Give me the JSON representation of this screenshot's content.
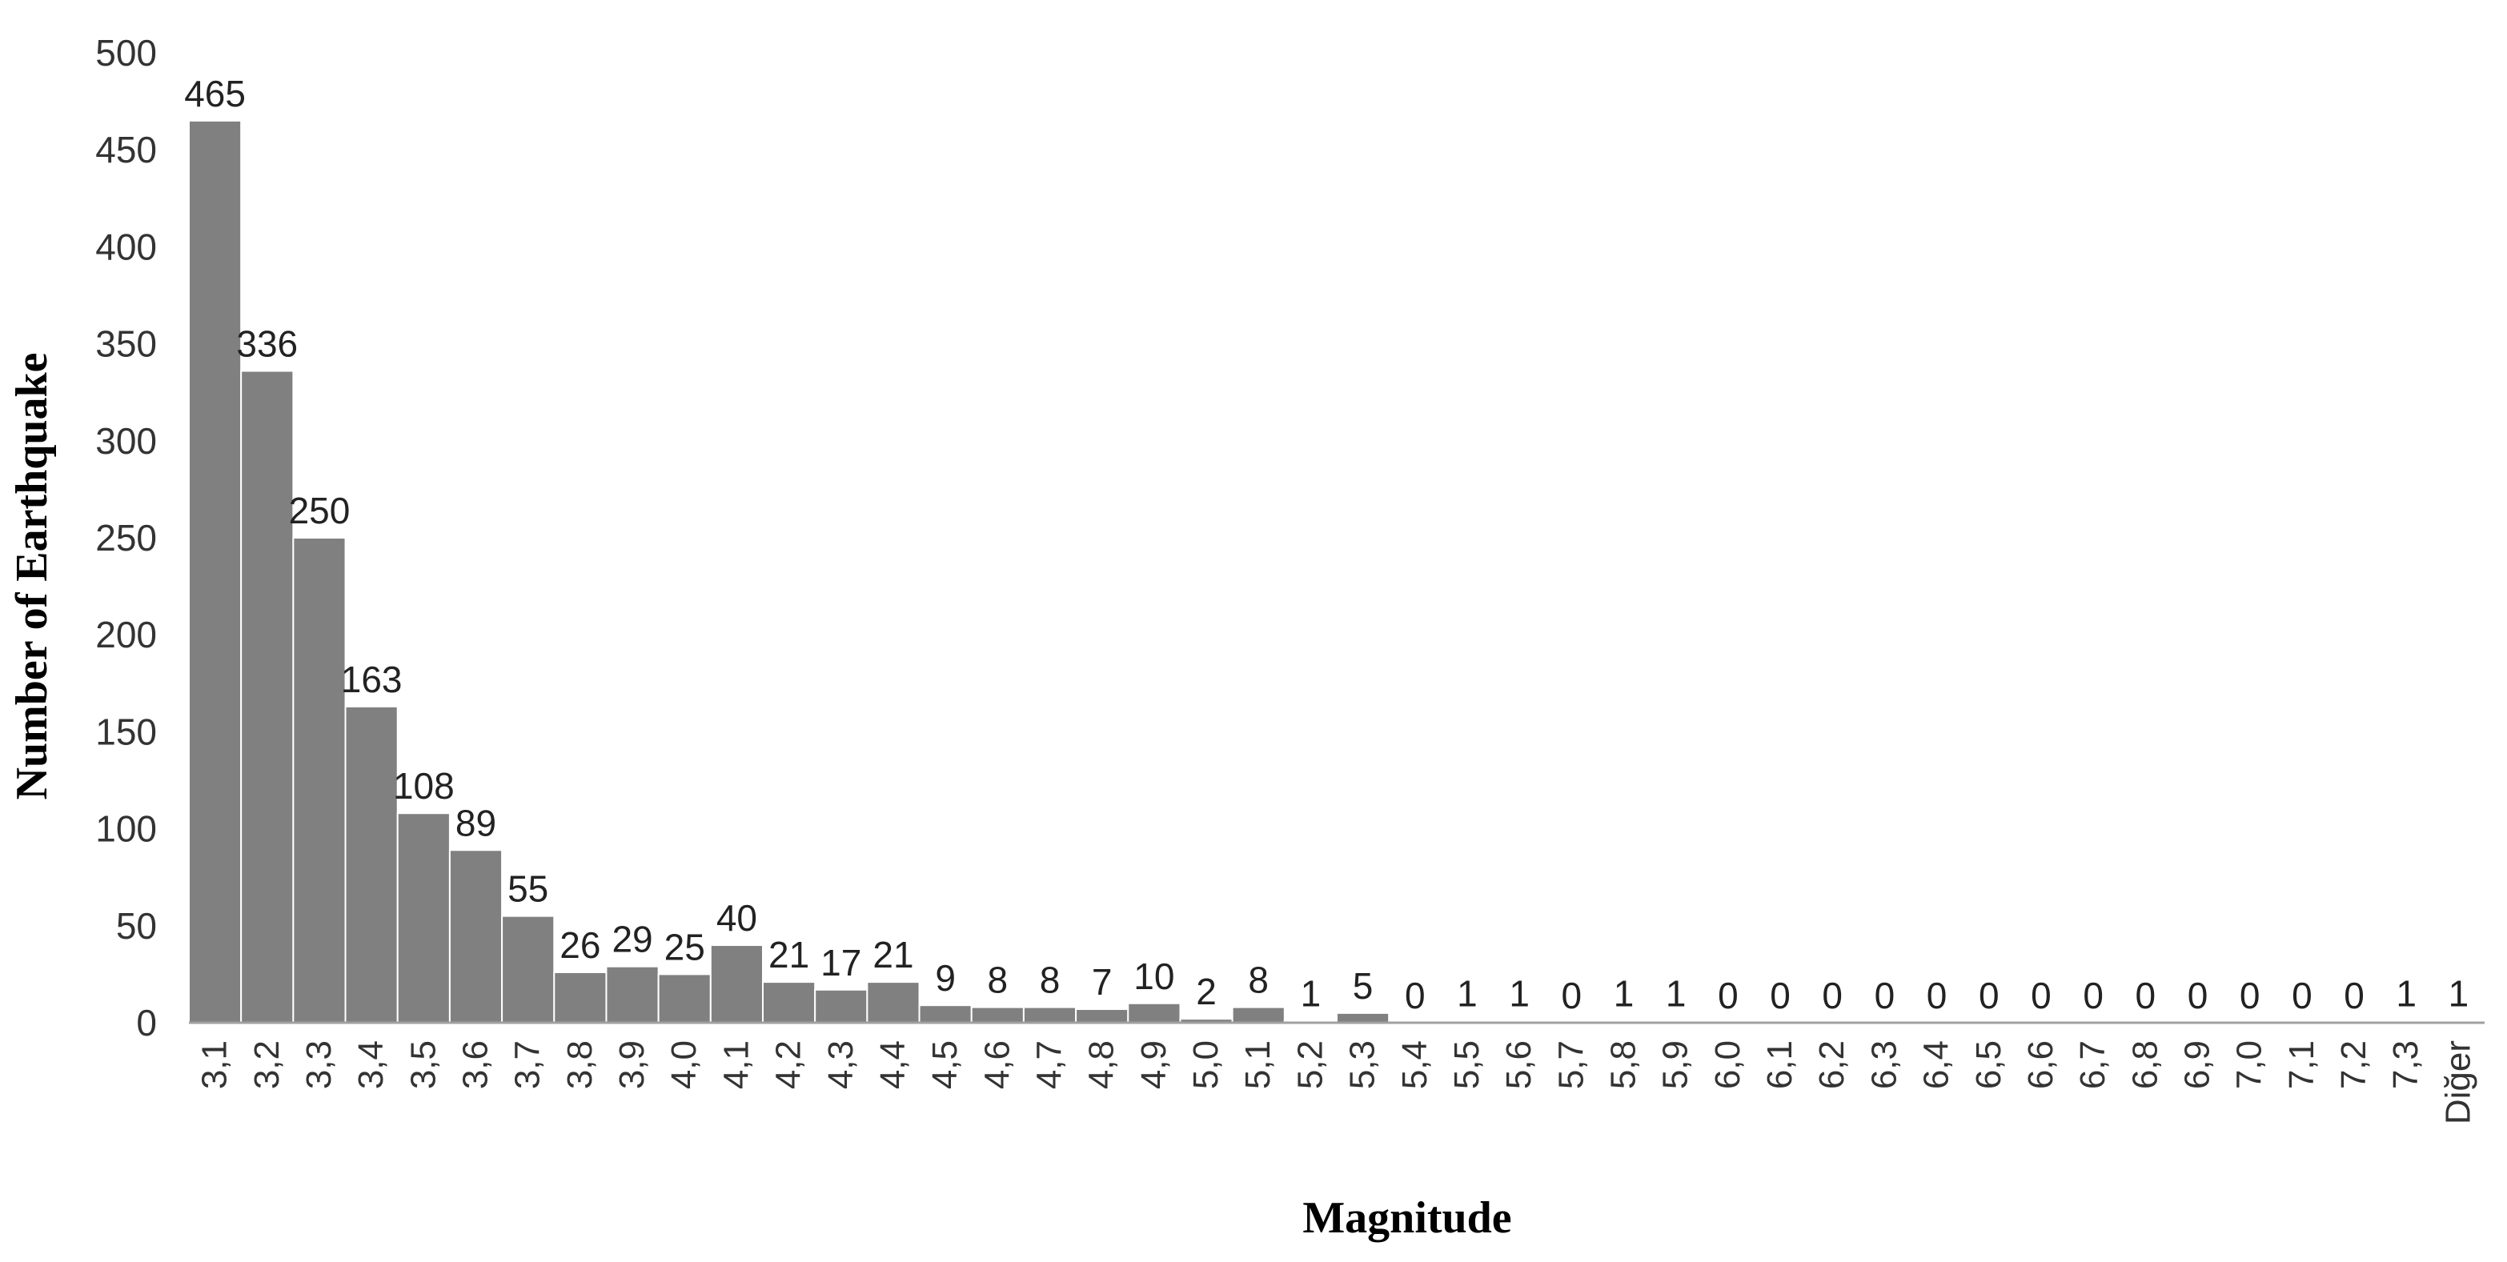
{
  "chart_data": {
    "type": "bar",
    "title": "",
    "xlabel": "Magnitude",
    "ylabel": "Number of Earthquake",
    "ylim": [
      0,
      500
    ],
    "yticks": [
      0,
      50,
      100,
      150,
      200,
      250,
      300,
      350,
      400,
      450,
      500
    ],
    "grid": false,
    "legend": "none",
    "bar_color": "#808080",
    "bar_edge_color": "#ffffff",
    "categories": [
      "3,1",
      "3,2",
      "3,3",
      "3,4",
      "3,5",
      "3,6",
      "3,7",
      "3,8",
      "3,9",
      "4,0",
      "4,1",
      "4,2",
      "4,3",
      "4,4",
      "4,5",
      "4,6",
      "4,7",
      "4,8",
      "4,9",
      "5,0",
      "5,1",
      "5,2",
      "5,3",
      "5,4",
      "5,5",
      "5,6",
      "5,7",
      "5,8",
      "5,9",
      "6,0",
      "6,1",
      "6,2",
      "6,3",
      "6,4",
      "6,5",
      "6,6",
      "6,7",
      "6,8",
      "6,9",
      "7,0",
      "7,1",
      "7,2",
      "7,3",
      "Diğer"
    ],
    "values": [
      465,
      336,
      250,
      163,
      108,
      89,
      55,
      26,
      29,
      25,
      40,
      21,
      17,
      21,
      9,
      8,
      8,
      7,
      10,
      2,
      8,
      1,
      5,
      0,
      1,
      1,
      0,
      1,
      1,
      0,
      0,
      0,
      0,
      0,
      0,
      0,
      0,
      0,
      0,
      0,
      0,
      0,
      1,
      1
    ]
  }
}
